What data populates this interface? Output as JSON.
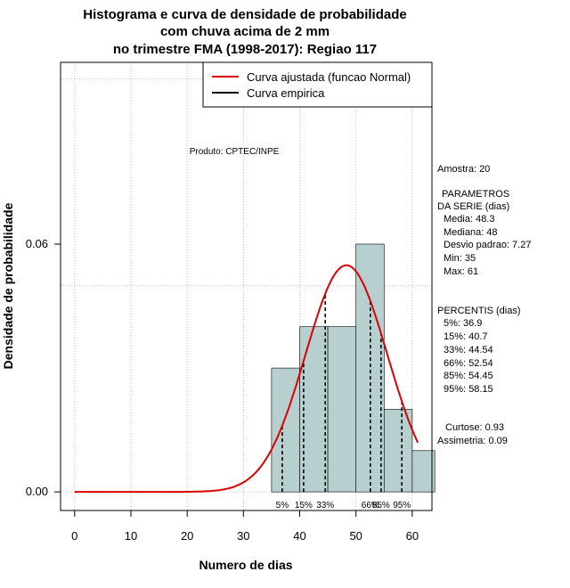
{
  "chart_data": {
    "type": "bar",
    "title_lines": [
      "Histograma e curva de densidade de probabilidade",
      "com chuva acima de 2 mm",
      "no trimestre FMA (1998-2017): Regiao 117"
    ],
    "xlabel": "Numero de dias",
    "ylabel": "Densidade de probabilidade",
    "xlim": [
      -2.5,
      63.5
    ],
    "ylim": [
      -0.0045,
      0.104
    ],
    "x_ticks": [
      0,
      10,
      20,
      30,
      40,
      50,
      60
    ],
    "y_ticks": [
      0.0,
      0.06
    ],
    "y_tick_labels": [
      "0.00",
      "0.06"
    ],
    "grid": true,
    "grid_x": [
      0,
      10,
      20,
      30,
      40,
      50,
      60
    ],
    "grid_y": [
      0.0,
      0.05,
      0.1
    ],
    "bin_edges": [
      35,
      40,
      45,
      50,
      55,
      60,
      64
    ],
    "densities": [
      0.03,
      0.04,
      0.04,
      0.06,
      0.02,
      0.01
    ],
    "bar_color": "#b7cfcf",
    "curve_color": "#dd0000",
    "normal_fit": {
      "mean": 48.3,
      "sd": 7.27,
      "x_range": [
        0,
        61
      ]
    },
    "percentiles": [
      {
        "value": 36.9,
        "label": "5%"
      },
      {
        "value": 40.7,
        "label": "15%"
      },
      {
        "value": 44.54,
        "label": "33%"
      },
      {
        "value": 52.54,
        "label": "66%"
      },
      {
        "value": 54.45,
        "label": "85%"
      },
      {
        "value": 58.15,
        "label": "95%"
      }
    ],
    "legend": {
      "position": "top-right",
      "entries": [
        {
          "label": "Curva ajustada (funcao Normal)",
          "color": "#dd0000"
        },
        {
          "label": "Curva empirica",
          "color": "#000000"
        }
      ]
    },
    "annotation": "Produto: CPTEC/INPE",
    "stats_panel": {
      "sample": "Amostra: 20",
      "params_heading_1": "PARAMETROS",
      "params_heading_2": "DA SERIE (dias)",
      "params": [
        "Media: 48.3",
        "Mediana: 48",
        "Desvio padrao: 7.27",
        "Min: 35",
        "Max: 61"
      ],
      "percentis_heading": "PERCENTIS (dias)",
      "percentis": [
        "5%: 36.9",
        "15%: 40.7",
        "33%: 44.54",
        "66%: 52.54",
        "85%: 54.45",
        "95%: 58.15"
      ],
      "curtose": "Curtose: 0.93",
      "assimetria": "Assimetria: 0.09"
    }
  }
}
